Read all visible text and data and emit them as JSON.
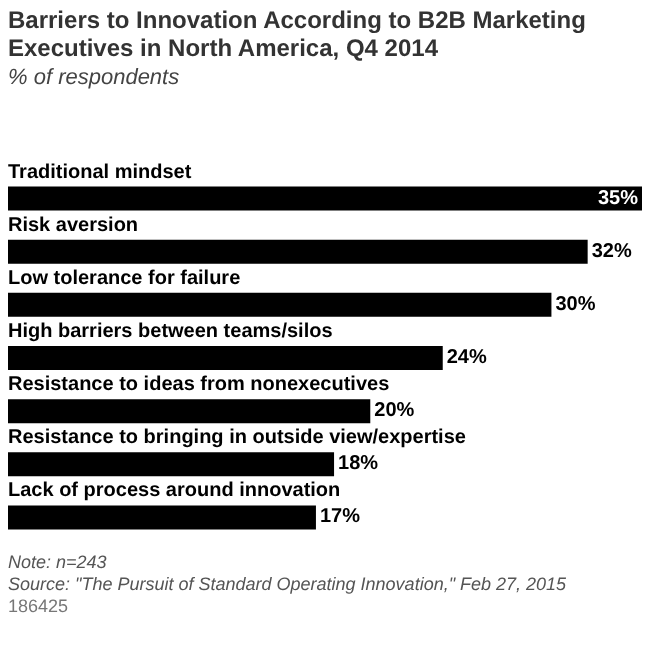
{
  "chart_data": {
    "type": "bar",
    "orientation": "horizontal",
    "title": "Barriers to Innovation According to B2B Marketing Executives in North America, Q4 2014",
    "subtitle": "% of respondents",
    "categories": [
      "Traditional mindset",
      "Risk aversion",
      "Low tolerance for failure",
      "High barriers between teams/silos",
      "Resistance to ideas from nonexecutives",
      "Resistance to bringing in outside view/expertise",
      "Lack of process around innovation"
    ],
    "values": [
      35,
      32,
      30,
      24,
      20,
      18,
      17
    ],
    "value_labels": [
      "35%",
      "32%",
      "30%",
      "24%",
      "20%",
      "18%",
      "17%"
    ],
    "color": "#000000",
    "annotations": [
      "Note: n=243",
      "Source: \"The Pursuit of Standard Operating Innovation,\" Feb 27, 2015",
      "186425"
    ]
  }
}
